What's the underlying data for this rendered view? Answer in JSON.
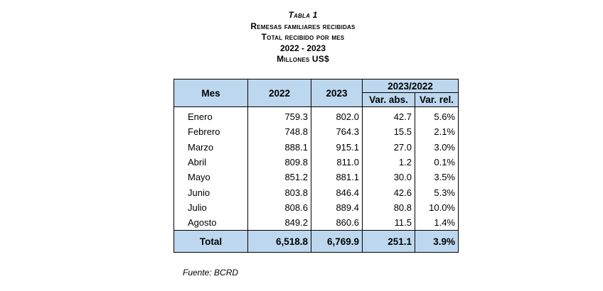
{
  "header": {
    "table_label": "Tabla 1",
    "title": "Remesas familiares recibidas",
    "subtitle": "Total recibido por mes",
    "period": "2022 - 2023",
    "units": "Millones US$"
  },
  "table": {
    "columns": {
      "mes": "Mes",
      "y2022": "2022",
      "y2023": "2023",
      "group": "2023/2022",
      "var_abs": "Var. abs.",
      "var_rel": "Var. rel."
    },
    "rows": [
      {
        "mes": "Enero",
        "y2022": "759.3",
        "y2023": "802.0",
        "var_abs": "42.7",
        "var_rel": "5.6%"
      },
      {
        "mes": "Febrero",
        "y2022": "748.8",
        "y2023": "764.3",
        "var_abs": "15.5",
        "var_rel": "2.1%"
      },
      {
        "mes": "Marzo",
        "y2022": "888.1",
        "y2023": "915.1",
        "var_abs": "27.0",
        "var_rel": "3.0%"
      },
      {
        "mes": "Abril",
        "y2022": "809.8",
        "y2023": "811.0",
        "var_abs": "1.2",
        "var_rel": "0.1%"
      },
      {
        "mes": "Mayo",
        "y2022": "851.2",
        "y2023": "881.1",
        "var_abs": "30.0",
        "var_rel": "3.5%"
      },
      {
        "mes": "Junio",
        "y2022": "803.8",
        "y2023": "846.4",
        "var_abs": "42.6",
        "var_rel": "5.3%"
      },
      {
        "mes": "Julio",
        "y2022": "808.6",
        "y2023": "889.4",
        "var_abs": "80.8",
        "var_rel": "10.0%"
      },
      {
        "mes": "Agosto",
        "y2022": "849.2",
        "y2023": "860.6",
        "var_abs": "11.5",
        "var_rel": "1.4%"
      }
    ],
    "total": {
      "mes": "Total",
      "y2022": "6,518.8",
      "y2023": "6,769.9",
      "var_abs": "251.1",
      "var_rel": "3.9%"
    }
  },
  "footer": {
    "source": "Fuente: BCRD"
  },
  "colors": {
    "header_fill": "#bdd7ee",
    "border": "#000000"
  }
}
